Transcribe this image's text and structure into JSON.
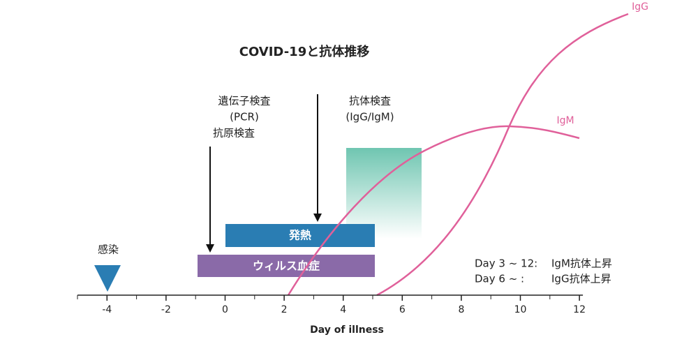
{
  "title": "COVID-19と抗体推移",
  "tests_left": [
    "遺伝子検査",
    "(PCR)",
    "抗原検査"
  ],
  "tests_right": [
    "抗体検査",
    "(IgG/IgM)"
  ],
  "bars": {
    "fever": "発熱",
    "viremia": "ウィルス血症"
  },
  "infection": "感染",
  "curves": {
    "igm": "IgM",
    "igg": "IgG"
  },
  "notes": [
    {
      "day": "Day 3 ~ 12:",
      "text": "IgM抗体上昇"
    },
    {
      "day": "Day 6 ~ :",
      "text": "IgG抗体上昇"
    }
  ],
  "x_axis": {
    "label": "Day of illness",
    "xlim": [
      -5,
      12
    ],
    "xticks": [
      -4,
      -2,
      0,
      2,
      4,
      6,
      8,
      10,
      12
    ]
  }
}
